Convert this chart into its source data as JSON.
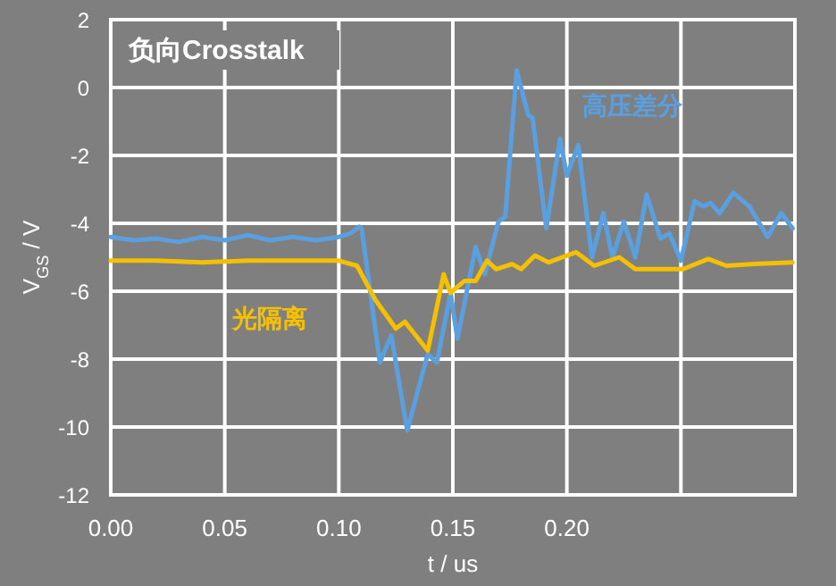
{
  "chart_data": {
    "type": "line",
    "title": "负向Crosstalk",
    "xlabel": "t / us",
    "ylabel": "V$_{GS}$ / V",
    "xlim": [
      0,
      0.3
    ],
    "ylim": [
      -12,
      2
    ],
    "xticks": [
      {
        "value": 0,
        "label": "0.00"
      },
      {
        "value": 0.05,
        "label": "0.05"
      },
      {
        "value": 0.1,
        "label": "0.10"
      },
      {
        "value": 0.15,
        "label": "0.15"
      },
      {
        "value": 0.2,
        "label": "0.20"
      },
      {
        "value": 0.25,
        "label": null
      }
    ],
    "yticks": [
      -12,
      -10,
      -8,
      -6,
      -4,
      -2,
      0,
      2
    ],
    "grid": true,
    "legend": false,
    "marker": "none",
    "line_style": "solid",
    "series": [
      {
        "name": "高压差分",
        "color": "#5aa0e0",
        "x": [
          0,
          0.01,
          0.02,
          0.03,
          0.04,
          0.05,
          0.06,
          0.07,
          0.08,
          0.09,
          0.1,
          0.105,
          0.109,
          0.11,
          0.118,
          0.123,
          0.13,
          0.139,
          0.143,
          0.149,
          0.152,
          0.16,
          0.164,
          0.17,
          0.173,
          0.178,
          0.183,
          0.185,
          0.191,
          0.197,
          0.2,
          0.205,
          0.211,
          0.216,
          0.22,
          0.225,
          0.23,
          0.235,
          0.241,
          0.245,
          0.25,
          0.256,
          0.26,
          0.263,
          0.267,
          0.273,
          0.28,
          0.288,
          0.294,
          0.299
        ],
        "values": [
          -4.4,
          -4.5,
          -4.45,
          -4.55,
          -4.4,
          -4.5,
          -4.35,
          -4.5,
          -4.4,
          -4.5,
          -4.4,
          -4.3,
          -4.1,
          -4.15,
          -8.1,
          -7.3,
          -10.1,
          -7.85,
          -8.1,
          -6.05,
          -7.4,
          -4.7,
          -5.5,
          -3.95,
          -3.8,
          0.5,
          -0.8,
          -0.9,
          -4.15,
          -1.5,
          -2.6,
          -1.7,
          -5.0,
          -3.7,
          -5.0,
          -3.95,
          -5.0,
          -3.15,
          -4.45,
          -4.3,
          -5.1,
          -3.35,
          -3.5,
          -3.4,
          -3.7,
          -3.1,
          -3.5,
          -4.4,
          -3.7,
          -4.15
        ]
      },
      {
        "name": "光隔离",
        "color": "#f5c000",
        "x": [
          0,
          0.02,
          0.04,
          0.06,
          0.08,
          0.1,
          0.108,
          0.116,
          0.125,
          0.129,
          0.139,
          0.146,
          0.149,
          0.155,
          0.16,
          0.165,
          0.169,
          0.176,
          0.18,
          0.186,
          0.192,
          0.204,
          0.212,
          0.223,
          0.23,
          0.251,
          0.262,
          0.27,
          0.282,
          0.299
        ],
        "values": [
          -5.1,
          -5.1,
          -5.15,
          -5.1,
          -5.1,
          -5.1,
          -5.25,
          -6.25,
          -7.1,
          -6.9,
          -7.75,
          -5.5,
          -6.05,
          -5.7,
          -5.7,
          -5.1,
          -5.35,
          -5.2,
          -5.35,
          -4.95,
          -5.15,
          -4.85,
          -5.25,
          -5.0,
          -5.35,
          -5.35,
          -5.05,
          -5.25,
          -5.2,
          -5.15
        ]
      }
    ]
  }
}
